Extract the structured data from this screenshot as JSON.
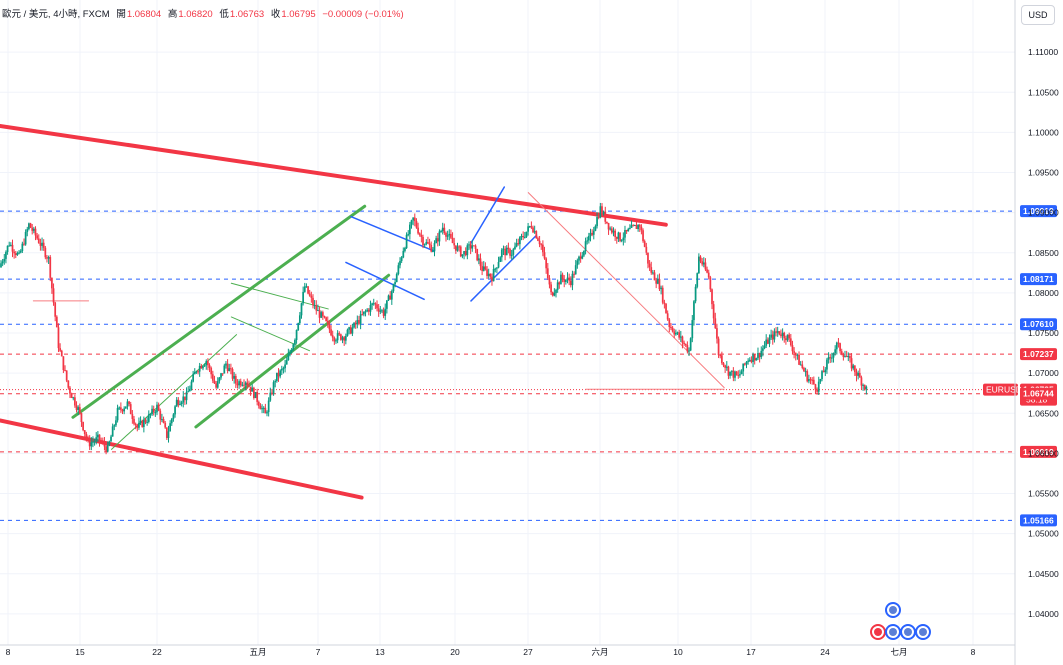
{
  "header": {
    "symbol_text": "歐元 / 美元, 4小時, FXCM",
    "open_label": "開",
    "open_value": "1.06804",
    "high_label": "高",
    "high_value": "1.06820",
    "low_label": "低",
    "low_value": "1.06763",
    "close_label": "收",
    "close_value": "1.06795",
    "change_text": "−0.00009 (−0.01%)"
  },
  "currency_button": "USD",
  "colors": {
    "up": "#089981",
    "down": "#f23645",
    "channel_red": "#f23645",
    "channel_green": "#4caf50",
    "flag_blue": "#2962ff",
    "label_blue": "#2962ff",
    "label_red": "#f23645"
  },
  "chart_data": {
    "type": "candlestick",
    "symbol": "EURUSD",
    "timeframe": "4小時",
    "ylim": [
      1.0355,
      1.1165
    ],
    "x_ticks": [
      "8",
      "15",
      "22",
      "五月",
      "7",
      "13",
      "20",
      "27",
      "六月",
      "10",
      "17",
      "24",
      "七月",
      "8"
    ],
    "y_ticks": [
      "1.11000",
      "1.10500",
      "1.10000",
      "1.09500",
      "1.09000",
      "1.08500",
      "1.08000",
      "1.07500",
      "1.07000",
      "1.06500",
      "1.06000",
      "1.05500",
      "1.05000",
      "1.04500",
      "1.04000"
    ],
    "price_labels": [
      {
        "value": "1.09019",
        "style": "blue"
      },
      {
        "value": "1.08171",
        "style": "blue"
      },
      {
        "value": "1.07610",
        "style": "blue"
      },
      {
        "value": "1.07237",
        "style": "red"
      },
      {
        "value": "1.06795",
        "style": "red",
        "tag": "EURUSD",
        "countdown": "58:18"
      },
      {
        "value": "1.06744",
        "style": "red"
      },
      {
        "value": "1.06019",
        "style": "red"
      },
      {
        "value": "1.05166",
        "style": "blue"
      }
    ],
    "price_path": [
      1.0832,
      1.0862,
      1.0845,
      1.0885,
      1.0865,
      1.0842,
      1.0735,
      1.0682,
      1.0655,
      1.0612,
      1.0618,
      1.0605,
      1.0652,
      1.0662,
      1.0632,
      1.0643,
      1.0658,
      1.0622,
      1.0665,
      1.0671,
      1.0705,
      1.0716,
      1.0682,
      1.0712,
      1.0688,
      1.0691,
      1.0671,
      1.0648,
      1.0693,
      1.0708,
      1.0745,
      1.0808,
      1.0782,
      1.0765,
      1.0745,
      1.0746,
      1.0758,
      1.0774,
      1.0787,
      1.0775,
      1.0808,
      1.0855,
      1.0892,
      1.0865,
      1.0855,
      1.0882,
      1.0862,
      1.0848,
      1.086,
      1.083,
      1.082,
      1.0852,
      1.085,
      1.0868,
      1.0885,
      1.086,
      1.0798,
      1.0818,
      1.0815,
      1.0848,
      1.087,
      1.0905,
      1.088,
      1.0868,
      1.0878,
      1.0885,
      1.083,
      1.081,
      1.076,
      1.0745,
      1.0728,
      1.0845,
      1.082,
      1.0725,
      1.0702,
      1.0695,
      1.0718,
      1.0722,
      1.074,
      1.0752,
      1.0745,
      1.0718,
      1.0695,
      1.0682,
      1.0712,
      1.0735,
      1.072,
      1.07,
      1.068
    ]
  },
  "chart_lines": [
    {
      "color": "red",
      "width": 4,
      "from": {
        "i": -3.2,
        "p": 1.1008
      },
      "to": {
        "i": 60.7,
        "p": 1.0885
      }
    },
    {
      "color": "red",
      "width": 4,
      "from": {
        "i": -3.2,
        "p": 1.0641
      },
      "to": {
        "i": 31.5,
        "p": 1.0545
      }
    },
    {
      "color": "green",
      "width": 3,
      "from": {
        "i": 3.8,
        "p": 1.0645
      },
      "to": {
        "i": 31.8,
        "p": 1.0908
      }
    },
    {
      "color": "green",
      "width": 3,
      "from": {
        "i": 15.6,
        "p": 1.0633
      },
      "to": {
        "i": 34.1,
        "p": 1.0822
      }
    },
    {
      "color": "green",
      "width": 1,
      "from": {
        "i": 7.5,
        "p": 1.0605
      },
      "to": {
        "i": 19.5,
        "p": 1.0748
      }
    },
    {
      "color": "green",
      "width": 1,
      "from": {
        "i": 19.0,
        "p": 1.0812
      },
      "to": {
        "i": 28.3,
        "p": 1.078
      }
    },
    {
      "color": "green",
      "width": 1,
      "from": {
        "i": 19.0,
        "p": 1.077
      },
      "to": {
        "i": 26.5,
        "p": 1.0728
      }
    },
    {
      "color": "blue",
      "width": 1.5,
      "from": {
        "i": 30.5,
        "p": 1.0895
      },
      "to": {
        "i": 38.5,
        "p": 1.0852
      }
    },
    {
      "color": "blue",
      "width": 1.5,
      "from": {
        "i": 30.0,
        "p": 1.0838
      },
      "to": {
        "i": 37.5,
        "p": 1.0792
      }
    },
    {
      "color": "blue",
      "width": 1.5,
      "from": {
        "i": 42.0,
        "p": 1.0862
      },
      "to": {
        "i": 45.2,
        "p": 1.0932
      }
    },
    {
      "color": "blue",
      "width": 1.5,
      "from": {
        "i": 42.0,
        "p": 1.079
      },
      "to": {
        "i": 48.3,
        "p": 1.0872
      }
    },
    {
      "color": "lightred",
      "width": 1,
      "from": {
        "i": 47.5,
        "p": 1.0925
      },
      "to": {
        "i": 66.3,
        "p": 1.0682
      }
    },
    {
      "color": "lightred",
      "width": 1,
      "from": {
        "i": 53.0,
        "p": 1.068
      },
      "to": {
        "i": 66.3,
        "p": 1.068
      }
    },
    {
      "color": "lightred",
      "width": 1,
      "from": {
        "i": 0,
        "p": 1.079
      },
      "to": {
        "i": 5.3,
        "p": 1.079
      }
    }
  ]
}
